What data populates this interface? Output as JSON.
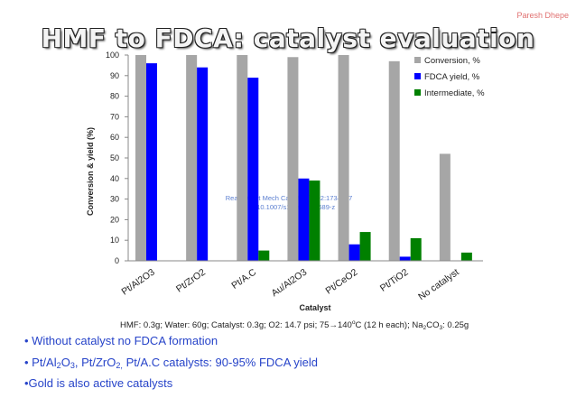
{
  "header": {
    "author": "Paresh Dhepe",
    "title": "HMF to FDCA: catalyst evaluation"
  },
  "chart_data": {
    "type": "bar",
    "categories": [
      "Pt/Al2O3",
      "Pt/ZrO2",
      "Pt/A.C",
      "Au/Al2O3",
      "Pt/CeO2",
      "Pt/TiO2",
      "No catalyst"
    ],
    "series": [
      {
        "name": "Conversion, %",
        "color": "#a6a6a6",
        "values": [
          100,
          100,
          100,
          99,
          100,
          97,
          52
        ]
      },
      {
        "name": "FDCA yield, %",
        "color": "#0000ff",
        "values": [
          96,
          94,
          89,
          40,
          8,
          2,
          0
        ]
      },
      {
        "name": "Intermediate, %",
        "color": "#008000",
        "values": [
          0,
          0,
          5,
          39,
          14,
          11,
          4
        ]
      }
    ],
    "xlabel": "Catalyst",
    "ylabel": "Conversion & yield (%)",
    "ylim": [
      0,
      100
    ],
    "yticks": [
      "0",
      "10",
      "20",
      "30",
      "40",
      "50",
      "60",
      "70",
      "80",
      "90",
      "100"
    ],
    "legend_position": "top-right",
    "grid": false,
    "watermark_lines": [
      "React Kinet Mech Cat (20...) 102:173–187",
      "DOI 10.1007/s11144-...-0689-z"
    ]
  },
  "footer": {
    "conditions_parts": [
      "HMF: 0.3g; Water: 60g; Catalyst: 0.3g;  O2: 14.7 psi; 75",
      "→",
      "140",
      "o",
      "C (12 h each); Na",
      "2",
      "CO",
      "3",
      ": 0.25g"
    ],
    "bullet1": "• Without catalyst no FDCA  formation",
    "bullet2_parts": [
      "• Pt/Al",
      "2",
      "O",
      "3",
      ", Pt/ZrO",
      "2,",
      "  Pt/A.C catalysts: 90-95% FDCA yield"
    ],
    "bullet3": "•Gold is also active catalysts"
  }
}
